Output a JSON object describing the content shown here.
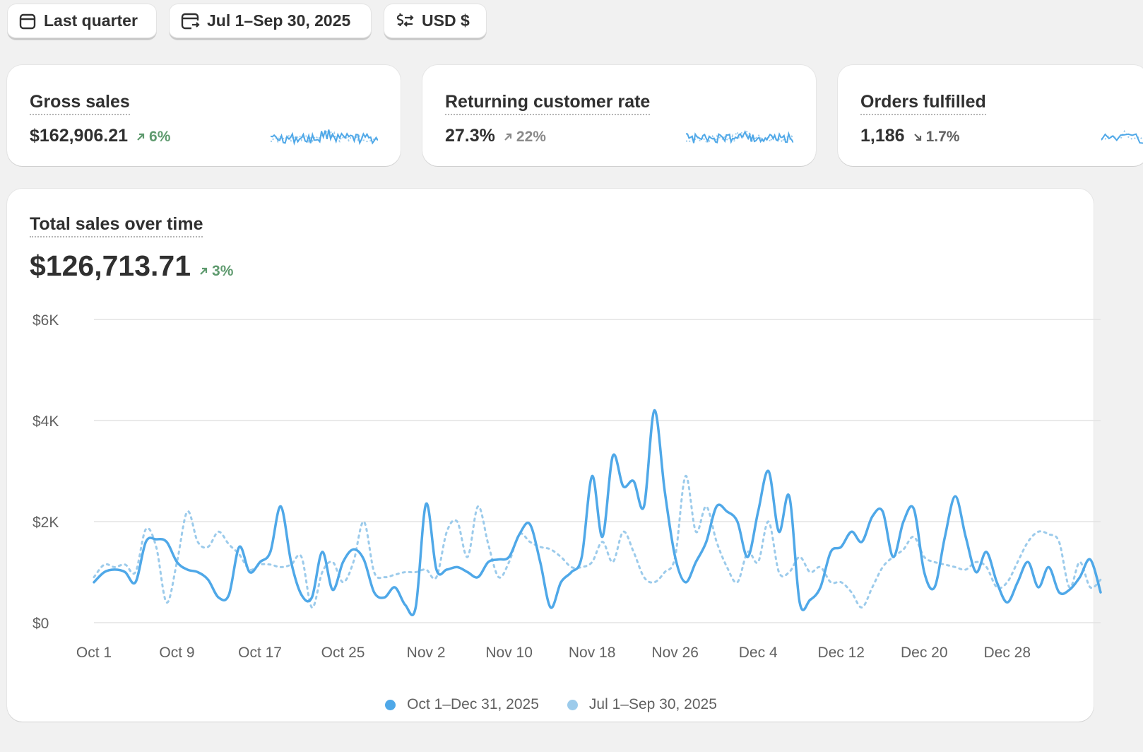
{
  "filters": {
    "period": "Last quarter",
    "comparison": "Jul 1–Sep 30, 2025",
    "currency": "USD $"
  },
  "kpis": [
    {
      "title": "Gross sales",
      "value": "$162,906.21",
      "delta": "6%",
      "trend": "up",
      "color": "#5e9a6e"
    },
    {
      "title": "Returning customer rate",
      "value": "27.3%",
      "delta": "22%",
      "trend": "up",
      "color": "#8a8a8a"
    },
    {
      "title": "Orders fulfilled",
      "value": "1,186",
      "delta": "1.7%",
      "trend": "down",
      "color": "#616161"
    }
  ],
  "chart": {
    "title": "Total sales over time",
    "total": "$126,713.71",
    "delta": "3%",
    "legend": [
      "Oct 1–Dec 31, 2025",
      "Jul 1–Sep 30, 2025"
    ]
  },
  "colors": {
    "current": "#4fa8e8",
    "previous": "#9ccbeb",
    "up": "#5e9a6e"
  },
  "chart_data": {
    "type": "line",
    "ylabel": "",
    "ylim": [
      0,
      6000
    ],
    "yticks": [
      0,
      2000,
      4000,
      6000
    ],
    "ytick_labels": [
      "$0",
      "$2K",
      "$4K",
      "$6K"
    ],
    "xtick_labels": [
      "Oct 1",
      "Oct 9",
      "Oct 17",
      "Oct 25",
      "Nov 2",
      "Nov 10",
      "Nov 18",
      "Nov 26",
      "Dec 4",
      "Dec 12",
      "Dec 20",
      "Dec 28"
    ],
    "x_start": "Oct 1",
    "series": [
      {
        "name": "Oct 1–Dec 31, 2025",
        "style": "solid",
        "values": [
          800,
          1000,
          1050,
          1000,
          800,
          1600,
          1650,
          1600,
          1200,
          1050,
          1000,
          850,
          500,
          550,
          1500,
          1000,
          1200,
          1400,
          2300,
          1200,
          550,
          500,
          1400,
          650,
          1200,
          1450,
          1250,
          600,
          500,
          700,
          350,
          300,
          2350,
          1050,
          1050,
          1100,
          1000,
          900,
          1200,
          1250,
          1300,
          1750,
          1950,
          1200,
          300,
          800,
          1000,
          1300,
          2900,
          1700,
          3300,
          2700,
          2800,
          2300,
          4200,
          2600,
          1300,
          800,
          1200,
          1600,
          2300,
          2200,
          2000,
          1300,
          2200,
          3000,
          1800,
          2500,
          400,
          450,
          700,
          1400,
          1500,
          1800,
          1600,
          2100,
          2200,
          1300,
          2000,
          2250,
          1000,
          700,
          1700,
          2500,
          1700,
          1000,
          1400,
          800,
          400,
          800,
          1200,
          700,
          1100,
          600,
          650,
          900,
          1250,
          600
        ]
      },
      {
        "name": "Jul 1–Sep 30, 2025",
        "style": "dashed",
        "values": [
          900,
          1150,
          1100,
          1150,
          1000,
          1850,
          1500,
          400,
          1200,
          2200,
          1600,
          1500,
          1800,
          1550,
          1350,
          1050,
          1150,
          1150,
          1100,
          1150,
          1300,
          300,
          1000,
          1200,
          800,
          1200,
          2000,
          1000,
          900,
          950,
          1000,
          1000,
          1050,
          900,
          1800,
          2000,
          1300,
          2300,
          1550,
          900,
          1200,
          1750,
          1600,
          1500,
          1450,
          1300,
          1100,
          1100,
          1200,
          1600,
          1200,
          1800,
          1400,
          900,
          800,
          1000,
          1300,
          2900,
          1800,
          2300,
          1600,
          1100,
          800,
          1400,
          1200,
          2000,
          1000,
          1000,
          1300,
          1000,
          1100,
          800,
          800,
          600,
          300,
          700,
          1100,
          1300,
          1450,
          1700,
          1300,
          1200,
          1150,
          1100,
          1050,
          1200,
          1100,
          700,
          800,
          1200,
          1600,
          1800,
          1750,
          1600,
          700,
          1200,
          700,
          850
        ]
      }
    ]
  }
}
